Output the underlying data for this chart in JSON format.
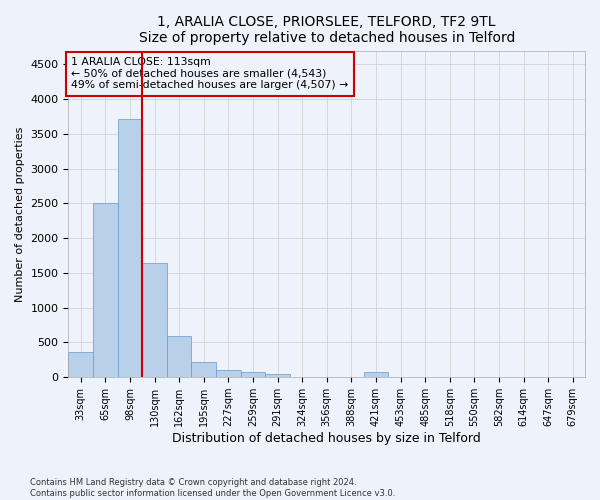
{
  "title": "1, ARALIA CLOSE, PRIORSLEE, TELFORD, TF2 9TL",
  "subtitle": "Size of property relative to detached houses in Telford",
  "xlabel": "Distribution of detached houses by size in Telford",
  "ylabel": "Number of detached properties",
  "categories": [
    "33sqm",
    "65sqm",
    "98sqm",
    "130sqm",
    "162sqm",
    "195sqm",
    "227sqm",
    "259sqm",
    "291sqm",
    "324sqm",
    "356sqm",
    "388sqm",
    "421sqm",
    "453sqm",
    "485sqm",
    "518sqm",
    "550sqm",
    "582sqm",
    "614sqm",
    "647sqm",
    "679sqm"
  ],
  "values": [
    370,
    2500,
    3720,
    1640,
    590,
    225,
    110,
    75,
    50,
    0,
    0,
    0,
    70,
    0,
    0,
    0,
    0,
    0,
    0,
    0,
    0
  ],
  "bar_color": "#b8d0ea",
  "bar_edge_color": "#6699cc",
  "vline_color": "#cc0000",
  "ylim": [
    0,
    4700
  ],
  "yticks": [
    0,
    500,
    1000,
    1500,
    2000,
    2500,
    3000,
    3500,
    4000,
    4500
  ],
  "annotation_text": "1 ARALIA CLOSE: 113sqm\n← 50% of detached houses are smaller (4,543)\n49% of semi-detached houses are larger (4,507) →",
  "annotation_box_color": "#cc0000",
  "footer_line1": "Contains HM Land Registry data © Crown copyright and database right 2024.",
  "footer_line2": "Contains public sector information licensed under the Open Government Licence v3.0.",
  "bg_color": "#eef2fa",
  "grid_color": "#cccccc"
}
